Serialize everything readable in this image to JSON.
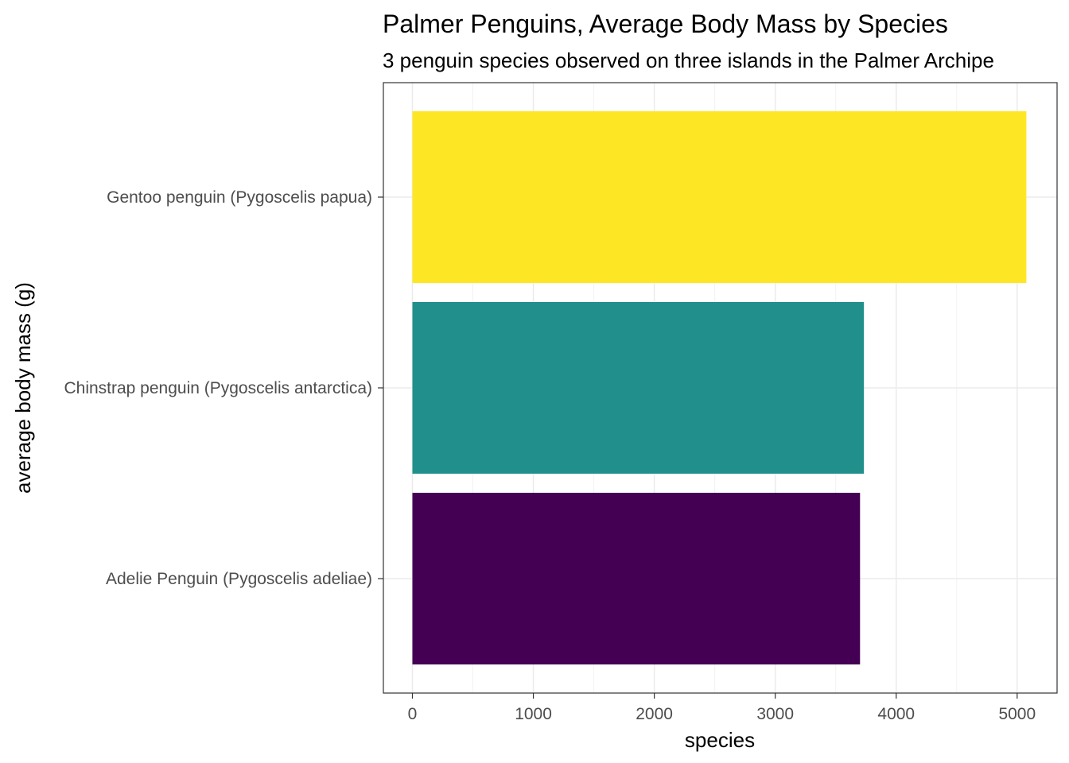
{
  "chart_data": {
    "type": "bar",
    "orientation": "horizontal",
    "title": "Palmer Penguins, Average Body Mass by Species",
    "subtitle": "3 penguin species observed on three islands in the Palmer Archipe",
    "xlabel": "species",
    "ylabel": "average body mass (g)",
    "categories": [
      "Adelie Penguin (Pygoscelis adeliae)",
      "Chinstrap penguin (Pygoscelis antarctica)",
      "Gentoo penguin (Pygoscelis papua)"
    ],
    "values": [
      3701,
      3733,
      5076
    ],
    "colors": [
      "#440154",
      "#21908C",
      "#FDE725"
    ],
    "xlim": [
      -240,
      5330
    ],
    "x_ticks": [
      0,
      1000,
      2000,
      3000,
      4000,
      5000
    ],
    "grid": true,
    "theme": "bw"
  }
}
